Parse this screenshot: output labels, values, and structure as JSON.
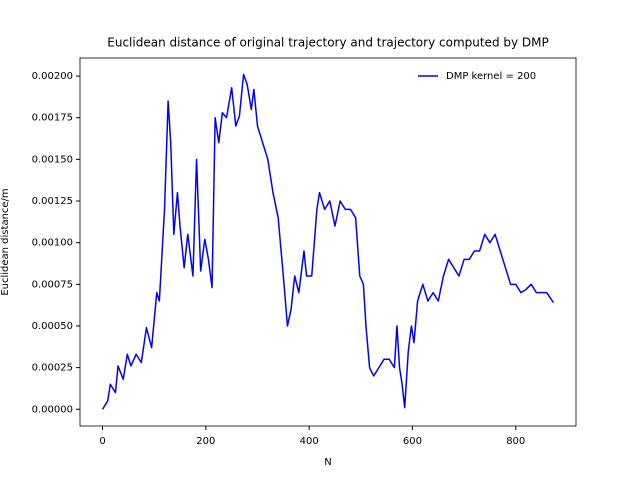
{
  "chart_data": {
    "type": "line",
    "title": "Euclidean distance of original trajectory and trajectory computed by DMP",
    "x_label": "N",
    "y_label": "Euclidean distance/m",
    "x": [
      0,
      10,
      15,
      25,
      30,
      40,
      48,
      55,
      65,
      75,
      85,
      95,
      105,
      110,
      120,
      127,
      132,
      138,
      145,
      150,
      158,
      165,
      175,
      182,
      190,
      198,
      205,
      212,
      218,
      225,
      232,
      240,
      250,
      258,
      265,
      273,
      280,
      288,
      293,
      300,
      310,
      320,
      330,
      340,
      350,
      358,
      365,
      372,
      380,
      390,
      395,
      405,
      415,
      420,
      430,
      440,
      450,
      460,
      470,
      480,
      490,
      498,
      505,
      510,
      517,
      525,
      535,
      545,
      555,
      565,
      570,
      575,
      580,
      585,
      592,
      598,
      603,
      610,
      620,
      630,
      640,
      650,
      660,
      670,
      680,
      690,
      700,
      710,
      720,
      730,
      740,
      750,
      760,
      770,
      780,
      790,
      800,
      810,
      820,
      830,
      840,
      850,
      860,
      873
    ],
    "series": [
      {
        "name": "DMP kernel = 200",
        "color": "#0000ff",
        "values": [
          0,
          5e-05,
          0.00015,
          0.0001,
          0.00026,
          0.00018,
          0.00033,
          0.00026,
          0.00033,
          0.00028,
          0.00049,
          0.00037,
          0.0007,
          0.00065,
          0.0012,
          0.00185,
          0.0016,
          0.00105,
          0.0013,
          0.0011,
          0.00085,
          0.00105,
          0.0008,
          0.0015,
          0.00083,
          0.00102,
          0.0009,
          0.00073,
          0.00175,
          0.0016,
          0.00178,
          0.00175,
          0.00193,
          0.0017,
          0.00176,
          0.00201,
          0.00195,
          0.0018,
          0.00192,
          0.0017,
          0.0016,
          0.0015,
          0.0013,
          0.00115,
          0.0008,
          0.0005,
          0.0006,
          0.0008,
          0.0007,
          0.00095,
          0.0008,
          0.0008,
          0.0012,
          0.0013,
          0.0012,
          0.00125,
          0.0011,
          0.00125,
          0.0012,
          0.0012,
          0.00115,
          0.0008,
          0.00075,
          0.0005,
          0.00025,
          0.0002,
          0.00025,
          0.0003,
          0.0003,
          0.00025,
          0.0005,
          0.00025,
          0.00015,
          1e-05,
          0.00035,
          0.0005,
          0.0004,
          0.00065,
          0.00075,
          0.00065,
          0.0007,
          0.00065,
          0.0008,
          0.0009,
          0.00085,
          0.0008,
          0.0009,
          0.0009,
          0.00095,
          0.00095,
          0.00105,
          0.001,
          0.00105,
          0.00095,
          0.00085,
          0.00075,
          0.00075,
          0.0007,
          0.00072,
          0.00075,
          0.0007,
          0.0007,
          0.0007,
          0.00064
        ]
      }
    ],
    "xlim": [
      -43.65,
      916.65
    ],
    "ylim": [
      -0.0001004,
      0.0021084
    ],
    "xticks": [
      0,
      200,
      400,
      600,
      800
    ],
    "yticks": [
      {
        "value": 0,
        "label": "0.00000"
      },
      {
        "value": 0.00025,
        "label": "0.00025"
      },
      {
        "value": 0.0005,
        "label": "0.00050"
      },
      {
        "value": 0.00075,
        "label": "0.00075"
      },
      {
        "value": 0.001,
        "label": "0.00100"
      },
      {
        "value": 0.00125,
        "label": "0.00125"
      },
      {
        "value": 0.0015,
        "label": "0.00150"
      },
      {
        "value": 0.00175,
        "label": "0.00175"
      },
      {
        "value": 0.002,
        "label": "0.00200"
      }
    ],
    "legend_position": "upper right",
    "grid": false
  }
}
